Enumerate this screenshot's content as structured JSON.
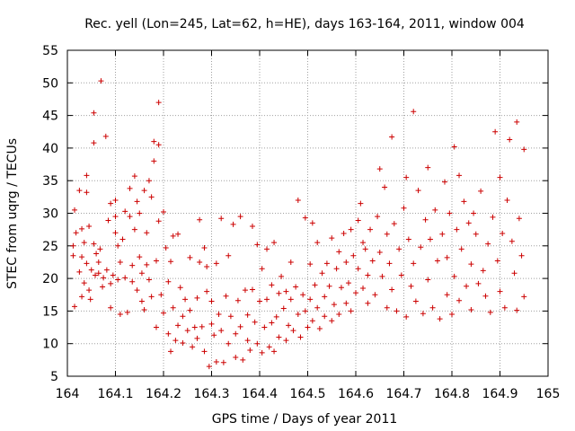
{
  "chart_data": {
    "type": "scatter",
    "title": "Rec. yell (Lon=245, Lat=62, h=HE), days 163-164, 2011, window 004",
    "xlabel": "GPS time / Days of year 2011",
    "ylabel": "STEC from uqrg / TECUs",
    "xlim": [
      164,
      165
    ],
    "ylim": [
      5,
      55
    ],
    "grid": true,
    "marker": "+",
    "marker_color": "#cc0000",
    "x_ticks": [
      "164",
      "164.1",
      "164.2",
      "164.3",
      "164.4",
      "164.5",
      "164.6",
      "164.7",
      "164.8",
      "164.9",
      "165"
    ],
    "y_ticks": [
      "5",
      "10",
      "15",
      "20",
      "25",
      "30",
      "35",
      "40",
      "45",
      "50",
      "55"
    ],
    "series": [
      {
        "points": [
          [
            164.015,
            15.7
          ],
          [
            164.015,
            30.5
          ],
          [
            164.012,
            25
          ],
          [
            164.012,
            23.5
          ],
          [
            164.018,
            27
          ],
          [
            164.025,
            21
          ],
          [
            164.025,
            33.5
          ],
          [
            164.03,
            17.2
          ],
          [
            164.03,
            23.3
          ],
          [
            164.03,
            27.6
          ],
          [
            164.035,
            19.3
          ],
          [
            164.035,
            25.5
          ],
          [
            164.04,
            33.2
          ],
          [
            164.04,
            35.8
          ],
          [
            164.04,
            22.3
          ],
          [
            164.045,
            28
          ],
          [
            164.045,
            18.2
          ],
          [
            164.048,
            16.8
          ],
          [
            164.05,
            21.3
          ],
          [
            164.055,
            45.4
          ],
          [
            164.055,
            40.8
          ],
          [
            164.055,
            25.3
          ],
          [
            164.058,
            20.5
          ],
          [
            164.06,
            23.8
          ],
          [
            164.065,
            20.8
          ],
          [
            164.065,
            22.5
          ],
          [
            164.068,
            24.5
          ],
          [
            164.07,
            50.3
          ],
          [
            164.073,
            18.7
          ],
          [
            164.075,
            20.1
          ],
          [
            164.08,
            41.8
          ],
          [
            164.082,
            21.3
          ],
          [
            164.085,
            28.9
          ],
          [
            164.09,
            31.5
          ],
          [
            164.09,
            19.2
          ],
          [
            164.09,
            15.5
          ],
          [
            164.095,
            20.5
          ],
          [
            164.1,
            32
          ],
          [
            164.1,
            29.5
          ],
          [
            164.1,
            27
          ],
          [
            164.105,
            19.8
          ],
          [
            164.105,
            25
          ],
          [
            164.11,
            22.5
          ],
          [
            164.11,
            14.5
          ],
          [
            164.115,
            26
          ],
          [
            164.12,
            30.3
          ],
          [
            164.12,
            20.1
          ],
          [
            164.125,
            14.8
          ],
          [
            164.13,
            29.5
          ],
          [
            164.13,
            33.8
          ],
          [
            164.135,
            22
          ],
          [
            164.135,
            19.5
          ],
          [
            164.14,
            35.7
          ],
          [
            164.14,
            27.5
          ],
          [
            164.145,
            18.2
          ],
          [
            164.145,
            31.8
          ],
          [
            164.15,
            30
          ],
          [
            164.15,
            23.3
          ],
          [
            164.155,
            16.5
          ],
          [
            164.155,
            20.8
          ],
          [
            164.16,
            33.5
          ],
          [
            164.16,
            15.2
          ],
          [
            164.165,
            22.1
          ],
          [
            164.165,
            27
          ],
          [
            164.17,
            35
          ],
          [
            164.17,
            19.8
          ],
          [
            164.175,
            32.5
          ],
          [
            164.175,
            17.2
          ],
          [
            164.18,
            41
          ],
          [
            164.18,
            38
          ],
          [
            164.185,
            12.5
          ],
          [
            164.185,
            22.7
          ],
          [
            164.19,
            47
          ],
          [
            164.19,
            40.5
          ],
          [
            164.19,
            28.8
          ],
          [
            164.195,
            17.5
          ],
          [
            164.2,
            30.2
          ],
          [
            164.2,
            14.7
          ],
          [
            164.205,
            24.7
          ],
          [
            164.21,
            19.5
          ],
          [
            164.21,
            11.5
          ],
          [
            164.215,
            22.6
          ],
          [
            164.215,
            8.8
          ],
          [
            164.22,
            15.5
          ],
          [
            164.22,
            26.5
          ],
          [
            164.225,
            10.5
          ],
          [
            164.23,
            26.8
          ],
          [
            164.23,
            12.8
          ],
          [
            164.235,
            18.6
          ],
          [
            164.24,
            14.2
          ],
          [
            164.24,
            10.1
          ],
          [
            164.245,
            16.8
          ],
          [
            164.25,
            12
          ],
          [
            164.255,
            15.1
          ],
          [
            164.255,
            23.2
          ],
          [
            164.26,
            9.5
          ],
          [
            164.265,
            12.5
          ],
          [
            164.27,
            17
          ],
          [
            164.27,
            10.8
          ],
          [
            164.275,
            29
          ],
          [
            164.275,
            22.5
          ],
          [
            164.28,
            12.6
          ],
          [
            164.285,
            24.7
          ],
          [
            164.285,
            8.8
          ],
          [
            164.29,
            21.8
          ],
          [
            164.29,
            18
          ],
          [
            164.295,
            6.5
          ],
          [
            164.3,
            13
          ],
          [
            164.3,
            16.5
          ],
          [
            164.305,
            11.3
          ],
          [
            164.31,
            7.2
          ],
          [
            164.31,
            22.3
          ],
          [
            164.315,
            14.5
          ],
          [
            164.32,
            29.2
          ],
          [
            164.32,
            12
          ],
          [
            164.325,
            7.1
          ],
          [
            164.33,
            17.3
          ],
          [
            164.335,
            10
          ],
          [
            164.335,
            23.5
          ],
          [
            164.34,
            14.2
          ],
          [
            164.345,
            28.3
          ],
          [
            164.35,
            11.5
          ],
          [
            164.35,
            7.9
          ],
          [
            164.355,
            16.6
          ],
          [
            164.36,
            29.5
          ],
          [
            164.36,
            12.6
          ],
          [
            164.365,
            7.5
          ],
          [
            164.37,
            18.2
          ],
          [
            164.375,
            10.5
          ],
          [
            164.375,
            14.4
          ],
          [
            164.38,
            9
          ],
          [
            164.385,
            18.3
          ],
          [
            164.385,
            28
          ],
          [
            164.39,
            13.3
          ],
          [
            164.395,
            10
          ],
          [
            164.395,
            25.2
          ],
          [
            164.4,
            16.5
          ],
          [
            164.405,
            8.6
          ],
          [
            164.405,
            21.5
          ],
          [
            164.41,
            12.5
          ],
          [
            164.415,
            16.8
          ],
          [
            164.415,
            24.5
          ],
          [
            164.42,
            9.5
          ],
          [
            164.425,
            19
          ],
          [
            164.425,
            13.2
          ],
          [
            164.43,
            25.5
          ],
          [
            164.43,
            8.8
          ],
          [
            164.435,
            14.1
          ],
          [
            164.44,
            11
          ],
          [
            164.44,
            17.7
          ],
          [
            164.445,
            20.3
          ],
          [
            164.45,
            15.4
          ],
          [
            164.455,
            10.5
          ],
          [
            164.455,
            18
          ],
          [
            164.46,
            12.8
          ],
          [
            164.465,
            22.5
          ],
          [
            164.465,
            16.8
          ],
          [
            164.47,
            12
          ],
          [
            164.475,
            18.7
          ],
          [
            164.48,
            32
          ],
          [
            164.48,
            14.5
          ],
          [
            164.485,
            11
          ],
          [
            164.49,
            17.5
          ],
          [
            164.495,
            15
          ],
          [
            164.495,
            29.3
          ],
          [
            164.5,
            12.5
          ],
          [
            164.505,
            22.2
          ],
          [
            164.505,
            16.8
          ],
          [
            164.51,
            13.5
          ],
          [
            164.51,
            28.5
          ],
          [
            164.515,
            19
          ],
          [
            164.52,
            15.5
          ],
          [
            164.52,
            25.5
          ],
          [
            164.525,
            12.3
          ],
          [
            164.53,
            20.8
          ],
          [
            164.535,
            17.2
          ],
          [
            164.535,
            14.2
          ],
          [
            164.54,
            22.3
          ],
          [
            164.545,
            18.8
          ],
          [
            164.55,
            13.5
          ],
          [
            164.55,
            26.2
          ],
          [
            164.555,
            16
          ],
          [
            164.56,
            21.5
          ],
          [
            164.565,
            24.1
          ],
          [
            164.565,
            14.5
          ],
          [
            164.57,
            18.6
          ],
          [
            164.575,
            26.9
          ],
          [
            164.58,
            22.5
          ],
          [
            164.58,
            16.2
          ],
          [
            164.585,
            19.3
          ],
          [
            164.59,
            15
          ],
          [
            164.59,
            27.5
          ],
          [
            164.595,
            23.5
          ],
          [
            164.6,
            17.8
          ],
          [
            164.605,
            28.9
          ],
          [
            164.605,
            21.5
          ],
          [
            164.61,
            31.5
          ],
          [
            164.615,
            18.5
          ],
          [
            164.615,
            25.5
          ],
          [
            164.62,
            24.5
          ],
          [
            164.625,
            20.5
          ],
          [
            164.625,
            16.2
          ],
          [
            164.63,
            27.5
          ],
          [
            164.635,
            22.7
          ],
          [
            164.64,
            17.5
          ],
          [
            164.645,
            29.5
          ],
          [
            164.65,
            36.8
          ],
          [
            164.65,
            24
          ],
          [
            164.655,
            20.3
          ],
          [
            164.66,
            34
          ],
          [
            164.665,
            26.8
          ],
          [
            164.665,
            15.5
          ],
          [
            164.67,
            22.3
          ],
          [
            164.675,
            41.7
          ],
          [
            164.675,
            18.3
          ],
          [
            164.68,
            28.4
          ],
          [
            164.685,
            15
          ],
          [
            164.69,
            24.5
          ],
          [
            164.695,
            20.5
          ],
          [
            164.7,
            30.8
          ],
          [
            164.705,
            14.1
          ],
          [
            164.705,
            35.5
          ],
          [
            164.71,
            26
          ],
          [
            164.715,
            18.8
          ],
          [
            164.72,
            45.6
          ],
          [
            164.72,
            22.3
          ],
          [
            164.725,
            16.5
          ],
          [
            164.73,
            33.5
          ],
          [
            164.735,
            24.8
          ],
          [
            164.74,
            14.6
          ],
          [
            164.745,
            29
          ],
          [
            164.75,
            37
          ],
          [
            164.75,
            19.8
          ],
          [
            164.755,
            26
          ],
          [
            164.76,
            15.5
          ],
          [
            164.765,
            30.5
          ],
          [
            164.77,
            22.7
          ],
          [
            164.775,
            13.8
          ],
          [
            164.78,
            26.8
          ],
          [
            164.785,
            34.8
          ],
          [
            164.79,
            17.5
          ],
          [
            164.79,
            23.2
          ],
          [
            164.795,
            30
          ],
          [
            164.8,
            14.5
          ],
          [
            164.805,
            40.2
          ],
          [
            164.805,
            20.3
          ],
          [
            164.81,
            27.5
          ],
          [
            164.815,
            35.8
          ],
          [
            164.815,
            16.6
          ],
          [
            164.82,
            24.5
          ],
          [
            164.825,
            31.8
          ],
          [
            164.83,
            18.8
          ],
          [
            164.835,
            28.5
          ],
          [
            164.84,
            22.2
          ],
          [
            164.84,
            15.2
          ],
          [
            164.845,
            30
          ],
          [
            164.85,
            26.8
          ],
          [
            164.855,
            19.2
          ],
          [
            164.86,
            33.4
          ],
          [
            164.865,
            21.2
          ],
          [
            164.87,
            17.3
          ],
          [
            164.875,
            25.3
          ],
          [
            164.88,
            14.8
          ],
          [
            164.885,
            29.4
          ],
          [
            164.89,
            42.5
          ],
          [
            164.895,
            22.7
          ],
          [
            164.9,
            35.5
          ],
          [
            164.9,
            18
          ],
          [
            164.905,
            26.9
          ],
          [
            164.91,
            15.5
          ],
          [
            164.915,
            32
          ],
          [
            164.92,
            41.3
          ],
          [
            164.925,
            25.7
          ],
          [
            164.93,
            20.8
          ],
          [
            164.935,
            44
          ],
          [
            164.935,
            15.1
          ],
          [
            164.94,
            29.2
          ],
          [
            164.945,
            23.5
          ],
          [
            164.95,
            39.8
          ],
          [
            164.95,
            17.2
          ]
        ]
      }
    ]
  }
}
